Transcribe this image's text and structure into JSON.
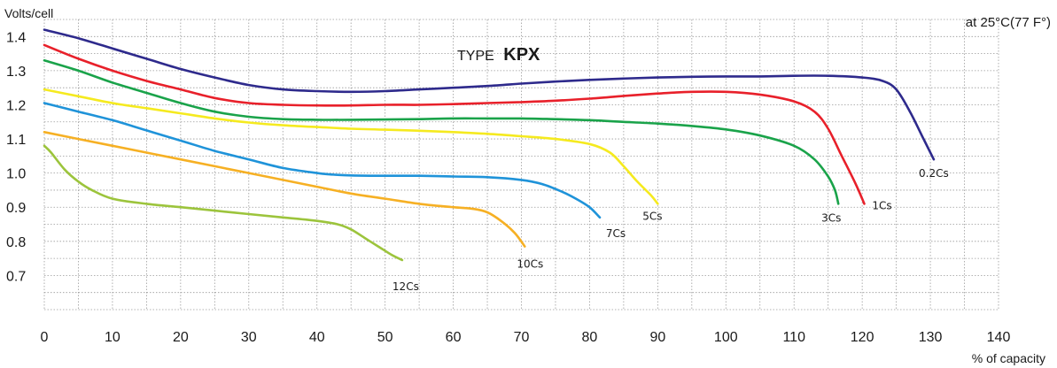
{
  "chart_data": {
    "type": "line",
    "title_prefix": "TYPE",
    "title_bold": "KPX",
    "ylabel": "Volts/cell",
    "xlabel": "% of capacity",
    "condition_note": "at 25°C(77 F°)",
    "xlim": [
      0,
      140
    ],
    "ylim": [
      0.6,
      1.45
    ],
    "x_ticks": [
      0,
      10,
      20,
      30,
      40,
      50,
      60,
      70,
      80,
      90,
      100,
      110,
      120,
      130,
      140
    ],
    "x_tick_labels": [
      "0",
      "10",
      "20",
      "30",
      "40",
      "50",
      "60",
      "70",
      "80",
      "90",
      "100",
      "110",
      "120",
      "130",
      "140"
    ],
    "y_ticks": [
      1.4,
      1.3,
      1.2,
      1.1,
      1.0,
      0.9,
      0.8,
      0.7
    ],
    "y_tick_labels": [
      "1.4",
      "1.3",
      "1.2",
      "1.1",
      "1.0",
      "0.9",
      "0.8",
      "0.7"
    ],
    "grid": true,
    "series": [
      {
        "name": "0.2Cs",
        "color": "#2e2a8c",
        "x": [
          0,
          5,
          10,
          15,
          20,
          25,
          30,
          35,
          40,
          45,
          50,
          55,
          60,
          65,
          70,
          75,
          80,
          85,
          90,
          95,
          100,
          105,
          110,
          115,
          120,
          123,
          125,
          127,
          129,
          130.5
        ],
        "y": [
          1.42,
          1.395,
          1.365,
          1.335,
          1.305,
          1.28,
          1.258,
          1.245,
          1.24,
          1.238,
          1.24,
          1.245,
          1.25,
          1.255,
          1.262,
          1.268,
          1.273,
          1.277,
          1.28,
          1.282,
          1.283,
          1.283,
          1.285,
          1.285,
          1.28,
          1.27,
          1.245,
          1.18,
          1.1,
          1.04
        ]
      },
      {
        "name": "1Cs",
        "color": "#e8202a",
        "x": [
          0,
          5,
          10,
          15,
          20,
          25,
          30,
          35,
          40,
          45,
          50,
          55,
          60,
          65,
          70,
          75,
          80,
          85,
          90,
          95,
          100,
          105,
          110,
          113,
          115,
          117,
          119,
          120.3
        ],
        "y": [
          1.375,
          1.335,
          1.3,
          1.27,
          1.245,
          1.22,
          1.205,
          1.2,
          1.198,
          1.198,
          1.2,
          1.2,
          1.202,
          1.205,
          1.208,
          1.212,
          1.218,
          1.226,
          1.233,
          1.238,
          1.238,
          1.23,
          1.21,
          1.18,
          1.13,
          1.05,
          0.97,
          0.91
        ]
      },
      {
        "name": "3Cs",
        "color": "#1aa34a",
        "x": [
          0,
          5,
          10,
          15,
          20,
          25,
          30,
          35,
          40,
          45,
          50,
          55,
          60,
          65,
          70,
          75,
          80,
          85,
          90,
          95,
          100,
          105,
          110,
          113,
          115,
          116,
          116.5
        ],
        "y": [
          1.33,
          1.3,
          1.265,
          1.235,
          1.205,
          1.18,
          1.165,
          1.158,
          1.156,
          1.156,
          1.157,
          1.158,
          1.16,
          1.16,
          1.16,
          1.158,
          1.155,
          1.15,
          1.145,
          1.138,
          1.128,
          1.11,
          1.08,
          1.04,
          0.99,
          0.95,
          0.91
        ]
      },
      {
        "name": "5Cs",
        "color": "#f5ea1f",
        "x": [
          0,
          5,
          10,
          15,
          20,
          25,
          30,
          35,
          40,
          45,
          50,
          55,
          60,
          65,
          70,
          75,
          80,
          83,
          85,
          87,
          89,
          90
        ],
        "y": [
          1.245,
          1.225,
          1.205,
          1.19,
          1.175,
          1.16,
          1.148,
          1.14,
          1.135,
          1.13,
          1.127,
          1.124,
          1.12,
          1.115,
          1.108,
          1.1,
          1.085,
          1.06,
          1.02,
          0.975,
          0.935,
          0.91
        ]
      },
      {
        "name": "7Cs",
        "color": "#1f93d9",
        "x": [
          0,
          5,
          10,
          15,
          20,
          25,
          30,
          35,
          40,
          42,
          45,
          50,
          55,
          60,
          65,
          70,
          73,
          76,
          78,
          80,
          81.5
        ],
        "y": [
          1.205,
          1.18,
          1.155,
          1.125,
          1.095,
          1.065,
          1.04,
          1.015,
          1.0,
          0.996,
          0.993,
          0.992,
          0.992,
          0.99,
          0.988,
          0.98,
          0.968,
          0.945,
          0.925,
          0.9,
          0.87
        ]
      },
      {
        "name": "10Cs",
        "color": "#f6b024",
        "x": [
          0,
          5,
          10,
          15,
          20,
          25,
          30,
          35,
          40,
          45,
          50,
          55,
          60,
          63,
          65,
          67,
          69,
          70.5
        ],
        "y": [
          1.12,
          1.1,
          1.08,
          1.06,
          1.04,
          1.02,
          1.0,
          0.98,
          0.96,
          0.94,
          0.925,
          0.91,
          0.9,
          0.895,
          0.885,
          0.86,
          0.825,
          0.785
        ]
      },
      {
        "name": "12Cs",
        "color": "#9cc43c",
        "x": [
          0,
          1,
          3,
          5,
          7,
          10,
          15,
          20,
          25,
          30,
          35,
          40,
          43,
          45,
          47,
          49,
          51,
          52.5
        ],
        "y": [
          1.08,
          1.06,
          1.01,
          0.975,
          0.95,
          0.925,
          0.91,
          0.9,
          0.89,
          0.88,
          0.87,
          0.86,
          0.85,
          0.835,
          0.81,
          0.785,
          0.76,
          0.745
        ]
      }
    ]
  }
}
